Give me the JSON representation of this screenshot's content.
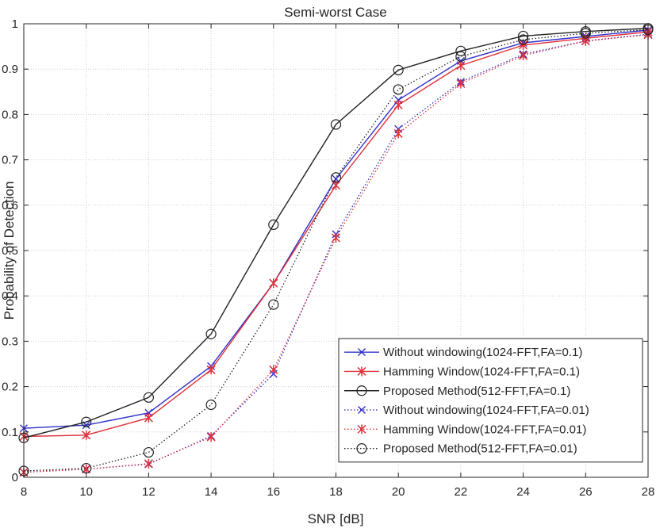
{
  "chart_data": {
    "type": "line",
    "title": "Semi-worst Case",
    "xlabel": "SNR [dB]",
    "ylabel": "Probability of Detection",
    "xlim": [
      8,
      28
    ],
    "ylim": [
      0,
      1
    ],
    "grid": true,
    "legend_position": "bottom-right",
    "x": [
      8,
      10,
      12,
      14,
      16,
      18,
      20,
      22,
      24,
      26,
      28
    ],
    "xticks": [
      "8",
      "10",
      "12",
      "14",
      "16",
      "18",
      "20",
      "22",
      "24",
      "26",
      "28"
    ],
    "yticks": [
      "0",
      "0.1",
      "0.2",
      "0.3",
      "0.4",
      "0.5",
      "0.6",
      "0.7",
      "0.8",
      "0.9",
      "1"
    ],
    "series": [
      {
        "name": "Without windowing(1024-FFT,FA=0.1)",
        "color": "#3030cc",
        "line_style": "solid",
        "marker": "x",
        "values": [
          0.108,
          0.115,
          0.142,
          0.245,
          0.428,
          0.658,
          0.832,
          0.918,
          0.958,
          0.972,
          0.986
        ]
      },
      {
        "name": "Hamming Window(1024-FFT,FA=0.1)",
        "color": "#e0303a",
        "line_style": "solid",
        "marker": "star",
        "values": [
          0.09,
          0.093,
          0.131,
          0.237,
          0.428,
          0.644,
          0.821,
          0.908,
          0.953,
          0.968,
          0.982
        ]
      },
      {
        "name": "Proposed Method(512-FFT,FA=0.1)",
        "color": "#222222",
        "line_style": "solid",
        "marker": "circle",
        "values": [
          0.087,
          0.122,
          0.176,
          0.316,
          0.557,
          0.778,
          0.898,
          0.94,
          0.973,
          0.983,
          0.99
        ]
      },
      {
        "name": "Without windowing(1024-FFT,FA=0.01)",
        "color": "#3030cc",
        "line_style": "dotted",
        "marker": "x",
        "values": [
          0.011,
          0.018,
          0.029,
          0.091,
          0.228,
          0.536,
          0.768,
          0.872,
          0.933,
          0.962,
          0.977
        ]
      },
      {
        "name": "Hamming Window(1024-FFT,FA=0.01)",
        "color": "#e0303a",
        "line_style": "dotted",
        "marker": "star",
        "values": [
          0.011,
          0.018,
          0.03,
          0.089,
          0.237,
          0.528,
          0.758,
          0.868,
          0.93,
          0.962,
          0.976
        ]
      },
      {
        "name": "Proposed Method(512-FFT,FA=0.01)",
        "color": "#222222",
        "line_style": "dotted",
        "marker": "circle",
        "values": [
          0.014,
          0.02,
          0.055,
          0.16,
          0.381,
          0.661,
          0.855,
          0.928,
          0.965,
          0.979,
          0.987
        ]
      }
    ]
  }
}
